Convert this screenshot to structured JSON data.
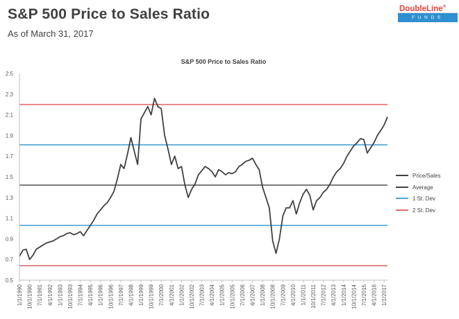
{
  "header": {
    "title": "S&P 500 Price to Sales Ratio",
    "subtitle": "As of March 31, 2017"
  },
  "logo": {
    "brand": "DoubleLine",
    "mark": "®",
    "tagline": "FUNDS"
  },
  "colors": {
    "price_sales": "#404040",
    "average": "#404040",
    "one_sd": "#4ea3d8",
    "two_sd": "#e26b6b"
  },
  "chart_data": {
    "type": "line",
    "title": "S&P 500 Price to Sales Ratio",
    "xlabel": "",
    "ylabel": "",
    "ylim": [
      0.5,
      2.5
    ],
    "yticks": [
      "0.5",
      "0.7",
      "0.9",
      "1.1",
      "1.3",
      "1.5",
      "1.7",
      "1.9",
      "2.1",
      "2.3",
      "2.5"
    ],
    "xlim": [
      1990.0,
      2017.25
    ],
    "grid": false,
    "legend_position": "right",
    "xtick_labels": [
      "1/1/1990",
      "10/1/1990",
      "7/1/1991",
      "4/1/1992",
      "1/1/1993",
      "10/1/1993",
      "7/1/1994",
      "4/1/1995",
      "1/1/1996",
      "10/1/1996",
      "7/1/1997",
      "4/1/1998",
      "1/1/1999",
      "10/1/1999",
      "7/1/2000",
      "4/1/2001",
      "1/1/2002",
      "10/1/2002",
      "7/1/2003",
      "4/1/2004",
      "1/1/2005",
      "10/1/2005",
      "7/1/2006",
      "4/1/2007",
      "1/1/2008",
      "10/1/2008",
      "7/1/2009",
      "4/1/2010",
      "1/1/2011",
      "10/1/2011",
      "7/1/2012",
      "4/1/2013",
      "1/1/2014",
      "10/1/2014",
      "7/1/2015",
      "4/1/2016",
      "1/1/2017"
    ],
    "xtick_values": [
      1990.0,
      1990.75,
      1991.5,
      1992.25,
      1993.0,
      1993.75,
      1994.5,
      1995.25,
      1996.0,
      1996.75,
      1997.5,
      1998.25,
      1999.0,
      1999.75,
      2000.5,
      2001.25,
      2002.0,
      2002.75,
      2003.5,
      2004.25,
      2005.0,
      2005.75,
      2006.5,
      2007.25,
      2008.0,
      2008.75,
      2009.5,
      2010.25,
      2011.0,
      2011.75,
      2012.5,
      2013.25,
      2014.0,
      2014.75,
      2015.5,
      2016.25,
      2017.0
    ],
    "series": [
      {
        "name": "Price/Sales",
        "x": [
          1990.0,
          1990.25,
          1990.5,
          1990.75,
          1991.0,
          1991.25,
          1991.5,
          1991.75,
          1992.0,
          1992.25,
          1992.5,
          1992.75,
          1993.0,
          1993.25,
          1993.5,
          1993.75,
          1994.0,
          1994.25,
          1994.5,
          1994.75,
          1995.0,
          1995.25,
          1995.5,
          1995.75,
          1996.0,
          1996.25,
          1996.5,
          1996.75,
          1997.0,
          1997.25,
          1997.5,
          1997.75,
          1998.0,
          1998.25,
          1998.5,
          1998.75,
          1999.0,
          1999.25,
          1999.5,
          1999.75,
          2000.0,
          2000.25,
          2000.5,
          2000.75,
          2001.0,
          2001.25,
          2001.5,
          2001.75,
          2002.0,
          2002.25,
          2002.5,
          2002.75,
          2003.0,
          2003.25,
          2003.5,
          2003.75,
          2004.0,
          2004.25,
          2004.5,
          2004.75,
          2005.0,
          2005.25,
          2005.5,
          2005.75,
          2006.0,
          2006.25,
          2006.5,
          2006.75,
          2007.0,
          2007.25,
          2007.5,
          2007.75,
          2008.0,
          2008.25,
          2008.5,
          2008.75,
          2009.0,
          2009.25,
          2009.5,
          2009.75,
          2010.0,
          2010.25,
          2010.5,
          2010.75,
          2011.0,
          2011.25,
          2011.5,
          2011.75,
          2012.0,
          2012.25,
          2012.5,
          2012.75,
          2013.0,
          2013.25,
          2013.5,
          2013.75,
          2014.0,
          2014.25,
          2014.5,
          2014.75,
          2015.0,
          2015.25,
          2015.5,
          2015.75,
          2016.0,
          2016.25,
          2016.5,
          2016.75,
          2017.0,
          2017.25
        ],
        "values": [
          0.73,
          0.79,
          0.8,
          0.7,
          0.74,
          0.8,
          0.82,
          0.84,
          0.86,
          0.87,
          0.88,
          0.9,
          0.92,
          0.93,
          0.95,
          0.96,
          0.94,
          0.95,
          0.97,
          0.93,
          0.98,
          1.03,
          1.08,
          1.14,
          1.18,
          1.22,
          1.25,
          1.3,
          1.36,
          1.48,
          1.62,
          1.58,
          1.72,
          1.88,
          1.75,
          1.62,
          2.06,
          2.12,
          2.18,
          2.1,
          2.26,
          2.18,
          2.16,
          1.9,
          1.77,
          1.62,
          1.7,
          1.58,
          1.6,
          1.42,
          1.3,
          1.38,
          1.43,
          1.52,
          1.56,
          1.6,
          1.58,
          1.55,
          1.5,
          1.57,
          1.55,
          1.52,
          1.54,
          1.53,
          1.55,
          1.6,
          1.62,
          1.65,
          1.66,
          1.68,
          1.62,
          1.57,
          1.4,
          1.3,
          1.2,
          0.88,
          0.76,
          0.9,
          1.12,
          1.2,
          1.2,
          1.27,
          1.14,
          1.25,
          1.33,
          1.38,
          1.32,
          1.18,
          1.27,
          1.3,
          1.35,
          1.38,
          1.43,
          1.5,
          1.55,
          1.58,
          1.63,
          1.7,
          1.75,
          1.8,
          1.83,
          1.87,
          1.86,
          1.73,
          1.78,
          1.83,
          1.9,
          1.95,
          2.0,
          2.08
        ]
      },
      {
        "name": "Average",
        "values": [
          1.42
        ]
      },
      {
        "name": "1 St. Dev",
        "values": [
          1.03,
          1.81
        ]
      },
      {
        "name": "2 St. Dev",
        "values": [
          0.64,
          2.2
        ]
      }
    ]
  }
}
